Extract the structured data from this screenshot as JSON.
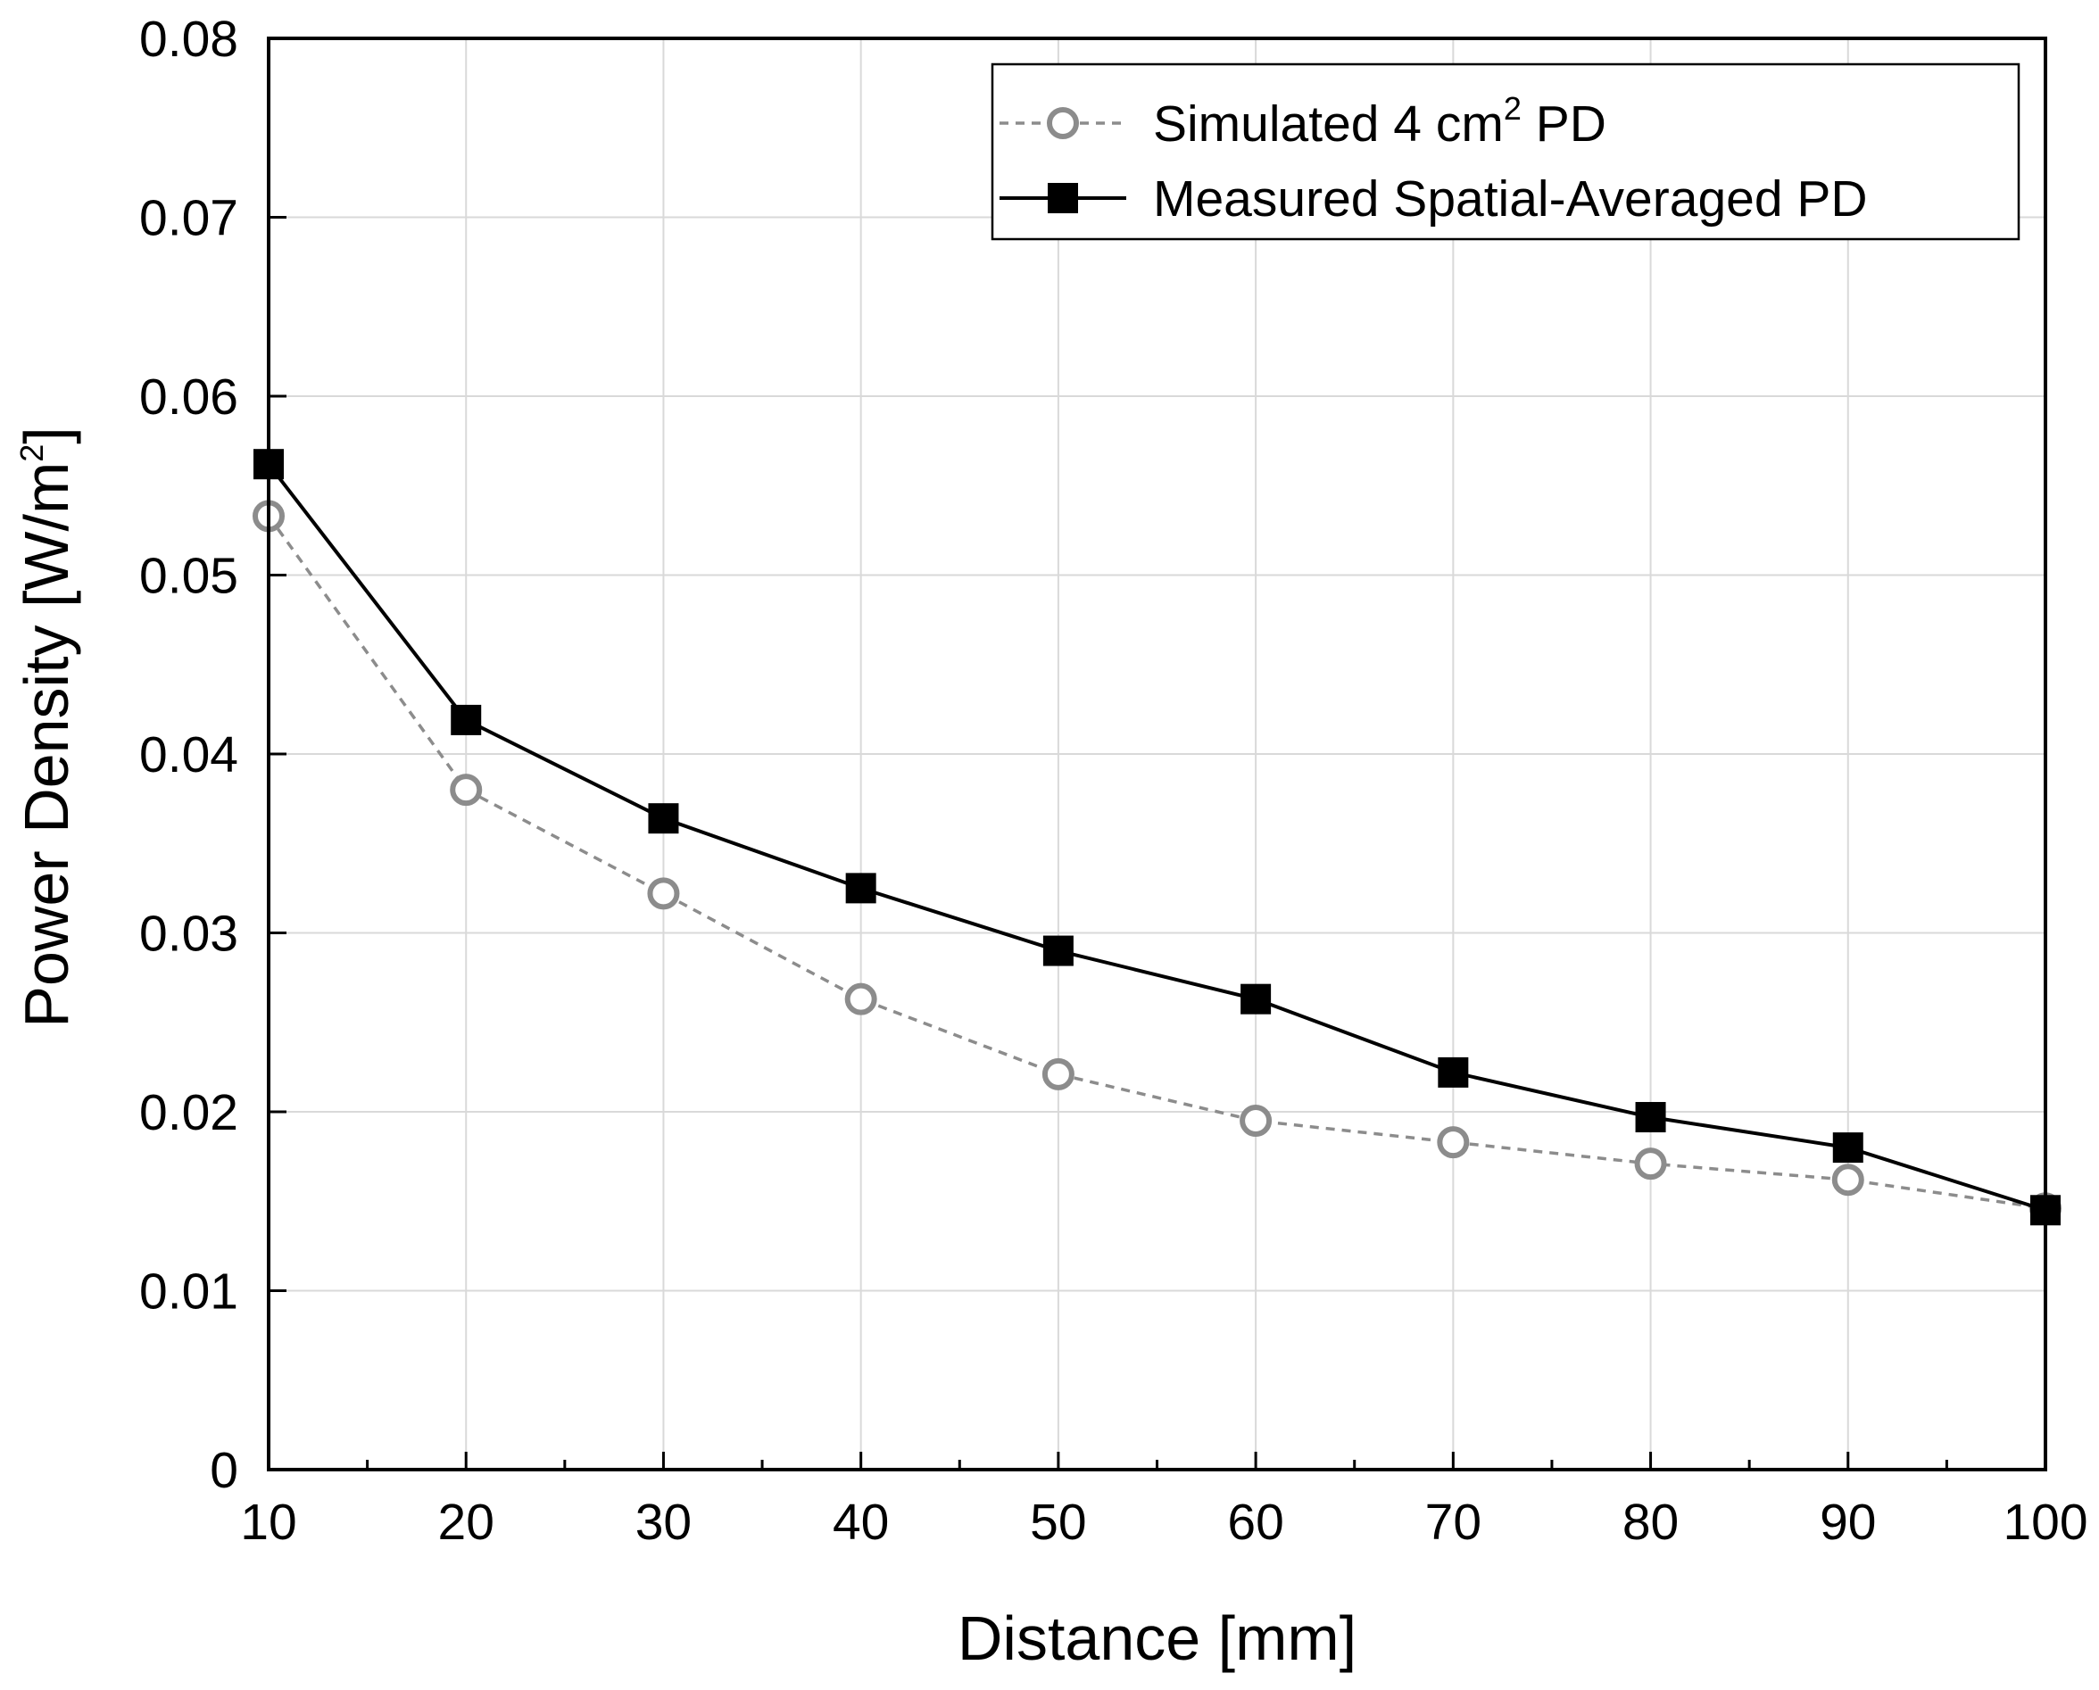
{
  "chart_data": {
    "type": "line",
    "title": "",
    "xlabel": "Distance [mm]",
    "ylabel": {
      "main": "Power Density [W/m",
      "sup": "2",
      "close": "]"
    },
    "xlim": [
      10,
      100
    ],
    "ylim": [
      0,
      0.08
    ],
    "x_ticks": [
      10,
      20,
      30,
      40,
      50,
      60,
      70,
      80,
      90,
      100
    ],
    "x_tick_labels": [
      "10",
      "20",
      "30",
      "40",
      "50",
      "60",
      "70",
      "80",
      "90",
      "100"
    ],
    "y_ticks": [
      0,
      0.01,
      0.02,
      0.03,
      0.04,
      0.05,
      0.06,
      0.07,
      0.08
    ],
    "y_tick_labels": [
      "0",
      "0.01",
      "0.02",
      "0.03",
      "0.04",
      "0.05",
      "0.06",
      "0.07",
      "0.08"
    ],
    "grid": true,
    "legend_position": "top-right",
    "x": [
      10,
      20,
      30,
      40,
      50,
      60,
      70,
      80,
      90,
      100
    ],
    "series": [
      {
        "name": "Simulated 4 cm² PD",
        "legend": {
          "pre": "Simulated 4 cm",
          "sup": "2",
          "post": " PD"
        },
        "values": [
          0.0533,
          0.038,
          0.0322,
          0.0263,
          0.0221,
          0.0195,
          0.0183,
          0.0171,
          0.0162,
          0.0146
        ],
        "color": "#8c8c8c",
        "line_style": "dashed",
        "marker": "open-circle"
      },
      {
        "name": "Measured Spatial-Averaged PD",
        "legend": {
          "pre": "Measured Spatial-Averaged PD",
          "sup": "",
          "post": ""
        },
        "values": [
          0.0562,
          0.0419,
          0.0364,
          0.0325,
          0.029,
          0.0263,
          0.0222,
          0.0197,
          0.018,
          0.0145
        ],
        "color": "#000000",
        "line_style": "solid",
        "marker": "filled-square"
      }
    ]
  }
}
